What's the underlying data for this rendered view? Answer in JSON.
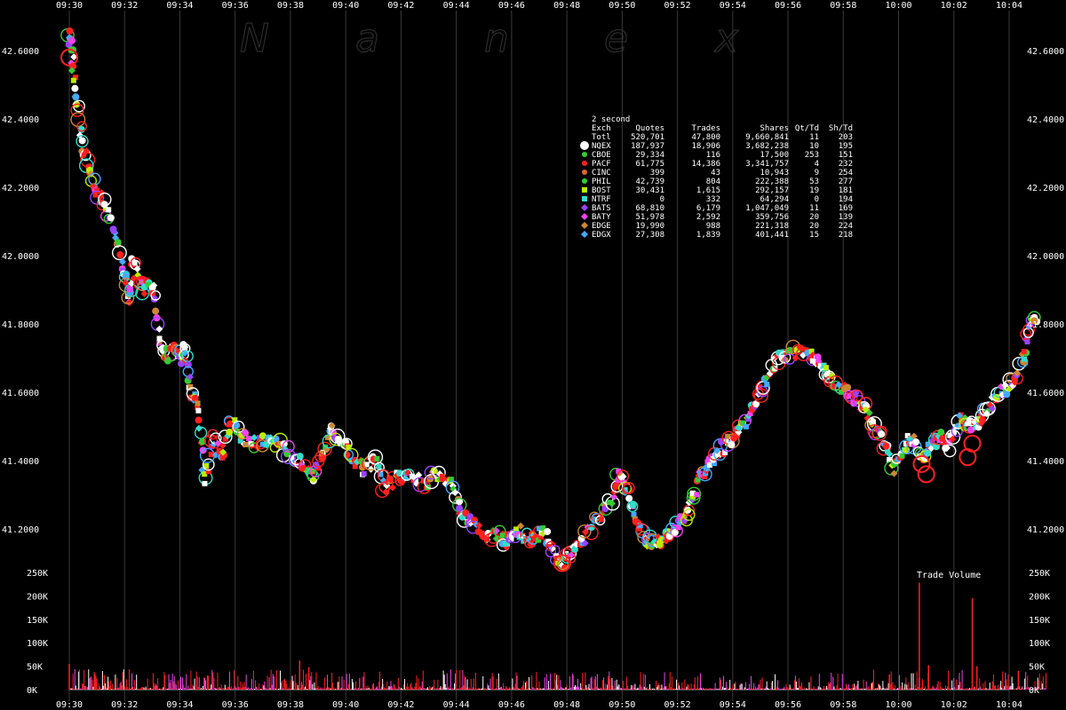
{
  "watermark": [
    "N",
    "a",
    "n",
    "e",
    "x"
  ],
  "chart_data": [
    {
      "type": "scatter",
      "title": "",
      "xlabel": "",
      "ylabel": "",
      "x_ticks": [
        "09:30",
        "09:32",
        "09:34",
        "09:36",
        "09:38",
        "09:40",
        "09:42",
        "09:44",
        "09:46",
        "09:48",
        "09:50",
        "09:52",
        "09:54",
        "09:56",
        "09:58",
        "10:00",
        "10:02",
        "10:04"
      ],
      "xlim": [
        "09:29:30",
        "10:05:40"
      ],
      "ylim": [
        41.07,
        42.68
      ],
      "y_ticks": [
        41.2,
        41.4,
        41.6,
        41.8,
        42.0,
        42.2,
        42.4,
        42.6
      ],
      "y_tick_labels": [
        "41.2000",
        "41.4000",
        "41.6000",
        "41.8000",
        "42.0000",
        "42.2000",
        "42.4000",
        "42.6000"
      ],
      "grid": "vertical",
      "legend_position": "top-right",
      "price_path": [
        [
          "09:30:00",
          42.66
        ],
        [
          "09:30:06",
          42.58
        ],
        [
          "09:30:15",
          42.45
        ],
        [
          "09:30:30",
          42.33
        ],
        [
          "09:30:45",
          42.24
        ],
        [
          "09:31:00",
          42.18
        ],
        [
          "09:31:20",
          42.14
        ],
        [
          "09:31:40",
          42.06
        ],
        [
          "09:32:00",
          41.95
        ],
        [
          "09:32:10",
          41.86
        ],
        [
          "09:32:20",
          41.99
        ],
        [
          "09:32:40",
          41.9
        ],
        [
          "09:33:00",
          41.92
        ],
        [
          "09:33:15",
          41.76
        ],
        [
          "09:33:30",
          41.7
        ],
        [
          "09:33:45",
          41.74
        ],
        [
          "09:34:00",
          41.7
        ],
        [
          "09:34:10",
          41.74
        ],
        [
          "09:34:25",
          41.6
        ],
        [
          "09:34:40",
          41.56
        ],
        [
          "09:34:55",
          41.34
        ],
        [
          "09:35:10",
          41.46
        ],
        [
          "09:35:30",
          41.41
        ],
        [
          "09:35:50",
          41.52
        ],
        [
          "09:36:15",
          41.47
        ],
        [
          "09:36:40",
          41.45
        ],
        [
          "09:37:10",
          41.46
        ],
        [
          "09:37:40",
          41.44
        ],
        [
          "09:38:05",
          41.41
        ],
        [
          "09:38:30",
          41.39
        ],
        [
          "09:38:50",
          41.35
        ],
        [
          "09:39:10",
          41.43
        ],
        [
          "09:39:30",
          41.49
        ],
        [
          "09:39:50",
          41.46
        ],
        [
          "09:40:10",
          41.41
        ],
        [
          "09:40:40",
          41.37
        ],
        [
          "09:41:05",
          41.42
        ],
        [
          "09:41:25",
          41.31
        ],
        [
          "09:41:50",
          41.35
        ],
        [
          "09:42:20",
          41.36
        ],
        [
          "09:42:50",
          41.33
        ],
        [
          "09:43:20",
          41.36
        ],
        [
          "09:43:50",
          41.33
        ],
        [
          "09:44:10",
          41.25
        ],
        [
          "09:44:30",
          41.22
        ],
        [
          "09:45:00",
          41.18
        ],
        [
          "09:45:30",
          41.18
        ],
        [
          "09:45:50",
          41.16
        ],
        [
          "09:46:10",
          41.2
        ],
        [
          "09:46:30",
          41.18
        ],
        [
          "09:46:50",
          41.17
        ],
        [
          "09:47:10",
          41.2
        ],
        [
          "09:47:30",
          41.13
        ],
        [
          "09:47:50",
          41.1
        ],
        [
          "09:48:10",
          41.13
        ],
        [
          "09:48:40",
          41.18
        ],
        [
          "09:49:10",
          41.24
        ],
        [
          "09:49:40",
          41.29
        ],
        [
          "09:49:55",
          41.37
        ],
        [
          "09:50:10",
          41.32
        ],
        [
          "09:50:30",
          41.24
        ],
        [
          "09:50:50",
          41.17
        ],
        [
          "09:51:10",
          41.16
        ],
        [
          "09:51:30",
          41.17
        ],
        [
          "09:51:50",
          41.19
        ],
        [
          "09:52:10",
          41.22
        ],
        [
          "09:52:30",
          41.27
        ],
        [
          "09:52:50",
          41.35
        ],
        [
          "09:53:10",
          41.39
        ],
        [
          "09:53:30",
          41.43
        ],
        [
          "09:53:50",
          41.45
        ],
        [
          "09:54:10",
          41.48
        ],
        [
          "09:54:30",
          41.52
        ],
        [
          "09:54:50",
          41.57
        ],
        [
          "09:55:10",
          41.63
        ],
        [
          "09:55:30",
          41.68
        ],
        [
          "09:55:50",
          41.71
        ],
        [
          "09:56:20",
          41.72
        ],
        [
          "09:56:50",
          41.71
        ],
        [
          "09:57:10",
          41.68
        ],
        [
          "09:57:30",
          41.64
        ],
        [
          "09:58:00",
          41.61
        ],
        [
          "09:58:30",
          41.58
        ],
        [
          "09:58:50",
          41.55
        ],
        [
          "09:59:10",
          41.49
        ],
        [
          "09:59:30",
          41.45
        ],
        [
          "09:59:50",
          41.38
        ],
        [
          "10:00:10",
          41.43
        ],
        [
          "10:00:30",
          41.47
        ],
        [
          "10:00:50",
          41.4
        ],
        [
          "10:01:10",
          41.45
        ],
        [
          "10:01:30",
          41.47
        ],
        [
          "10:01:50",
          41.44
        ],
        [
          "10:02:10",
          41.52
        ],
        [
          "10:02:30",
          41.5
        ],
        [
          "10:02:50",
          41.51
        ],
        [
          "10:03:10",
          41.54
        ],
        [
          "10:03:30",
          41.58
        ],
        [
          "10:03:50",
          41.61
        ],
        [
          "10:04:10",
          41.63
        ],
        [
          "10:04:30",
          41.7
        ],
        [
          "10:04:45",
          41.8
        ],
        [
          "10:05:00",
          41.82
        ]
      ],
      "legend": {
        "period": "2 second",
        "headers": [
          "Exch",
          "Quotes",
          "Trades",
          "Shares",
          "Qt/Td",
          "Sh/Td"
        ],
        "rows": [
          {
            "exch": "Totl",
            "quotes": "520,701",
            "trades": "47,800",
            "shares": "9,660,841",
            "qt_td": "11",
            "sh_td": "203",
            "color": "",
            "marker": "none"
          },
          {
            "exch": "NQEX",
            "quotes": "187,937",
            "trades": "18,906",
            "shares": "3,682,238",
            "qt_td": "10",
            "sh_td": "195",
            "color": "#ffffff",
            "marker": "circle-large"
          },
          {
            "exch": "CBOE",
            "quotes": "29,334",
            "trades": "116",
            "shares": "17,500",
            "qt_td": "253",
            "sh_td": "151",
            "color": "#33cc33",
            "marker": "circle"
          },
          {
            "exch": "PACF",
            "quotes": "61,775",
            "trades": "14,386",
            "shares": "3,341,757",
            "qt_td": "4",
            "sh_td": "232",
            "color": "#ff2020",
            "marker": "circle"
          },
          {
            "exch": "CINC",
            "quotes": "399",
            "trades": "43",
            "shares": "10,943",
            "qt_td": "9",
            "sh_td": "254",
            "color": "#dd6633",
            "marker": "circle"
          },
          {
            "exch": "PHIL",
            "quotes": "42,739",
            "trades": "804",
            "shares": "222,388",
            "qt_td": "53",
            "sh_td": "277",
            "color": "#33cc33",
            "marker": "circle"
          },
          {
            "exch": "BOST",
            "quotes": "30,431",
            "trades": "1,615",
            "shares": "292,157",
            "qt_td": "19",
            "sh_td": "181",
            "color": "#bbee00",
            "marker": "square"
          },
          {
            "exch": "NTRF",
            "quotes": "0",
            "trades": "332",
            "shares": "64,294",
            "qt_td": "0",
            "sh_td": "194",
            "color": "#33ddcc",
            "marker": "square"
          },
          {
            "exch": "BATS",
            "quotes": "68,810",
            "trades": "6,179",
            "shares": "1,047,049",
            "qt_td": "11",
            "sh_td": "169",
            "color": "#9944ff",
            "marker": "diamond"
          },
          {
            "exch": "BATY",
            "quotes": "51,978",
            "trades": "2,592",
            "shares": "359,756",
            "qt_td": "20",
            "sh_td": "139",
            "color": "#ee44ee",
            "marker": "diamond"
          },
          {
            "exch": "EDGE",
            "quotes": "19,990",
            "trades": "988",
            "shares": "221,318",
            "qt_td": "20",
            "sh_td": "224",
            "color": "#cc8833",
            "marker": "diamond"
          },
          {
            "exch": "EDGX",
            "quotes": "27,308",
            "trades": "1,839",
            "shares": "401,441",
            "qt_td": "15",
            "sh_td": "218",
            "color": "#44aaff",
            "marker": "diamond"
          }
        ]
      }
    },
    {
      "type": "bar",
      "title": "Trade Volume",
      "xlabel": "",
      "ylabel": "",
      "ylim": [
        0,
        250000
      ],
      "y_ticks": [
        0,
        50000,
        100000,
        150000,
        200000,
        250000
      ],
      "y_tick_labels": [
        "0K",
        "50K",
        "100K",
        "150K",
        "200K",
        "250K"
      ],
      "spikes": [
        [
          "09:30:00",
          55000
        ],
        [
          "09:38:20",
          62000
        ],
        [
          "09:38:40",
          48000
        ],
        [
          "09:35:00",
          30000
        ],
        [
          "10:00:45",
          228000
        ],
        [
          "10:01:05",
          52000
        ],
        [
          "10:02:40",
          195000
        ],
        [
          "10:02:50",
          50000
        ],
        [
          "10:04:20",
          40000
        ],
        [
          "09:59:40",
          32000
        ],
        [
          "09:49:30",
          28000
        ],
        [
          "09:40:30",
          25000
        ]
      ]
    }
  ],
  "colors": {
    "background": "#000000",
    "grid": "#3a3a3a",
    "text": "#ffffff",
    "watermark": "#2c2c2c"
  }
}
